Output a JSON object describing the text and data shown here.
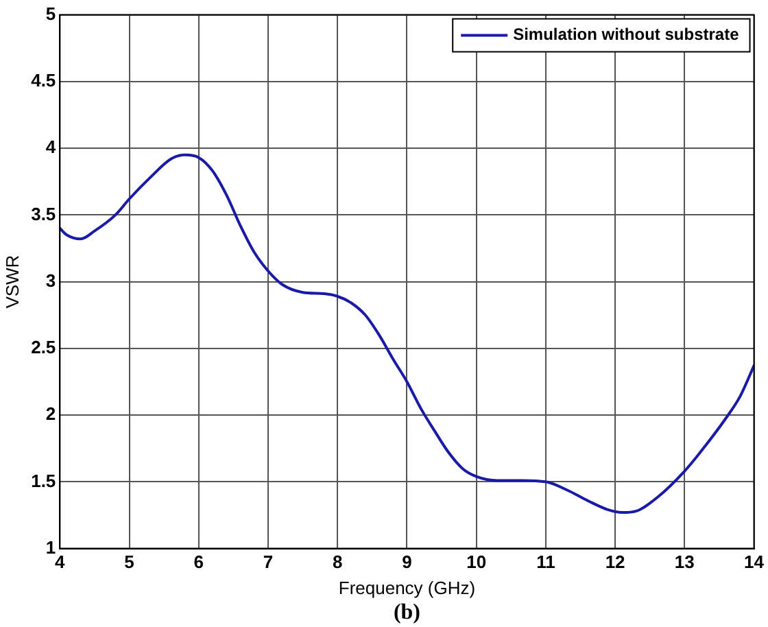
{
  "chart_data": {
    "type": "line",
    "xlabel": "Frequency (GHz)",
    "ylabel": "VSWR",
    "annotations": [
      "(b)"
    ],
    "xlim": [
      4,
      14
    ],
    "xticks": [
      4,
      5,
      6,
      7,
      8,
      9,
      10,
      11,
      12,
      13,
      14
    ],
    "ylim": [
      1,
      5
    ],
    "yticks": [
      1,
      1.5,
      2,
      2.5,
      3,
      3.5,
      4,
      4.5,
      5
    ],
    "grid": true,
    "legend": "top right",
    "marker": "none",
    "line_style": "solid",
    "series": [
      {
        "name": "Simulation without substrate",
        "color": "#1a1aa8",
        "x": [
          4,
          4.1,
          4.3,
          4.5,
          4.8,
          5,
          5.3,
          5.6,
          5.8,
          6,
          6.2,
          6.4,
          6.6,
          6.8,
          7,
          7.2,
          7.5,
          7.8,
          8,
          8.2,
          8.4,
          8.6,
          8.8,
          9,
          9.2,
          9.4,
          9.6,
          9.8,
          10,
          10.3,
          10.6,
          11,
          11.3,
          11.6,
          11.9,
          12.1,
          12.3,
          12.6,
          13,
          13.3,
          13.6,
          13.8,
          14
        ],
        "values": [
          3.4,
          3.35,
          3.32,
          3.38,
          3.5,
          3.62,
          3.78,
          3.92,
          3.95,
          3.93,
          3.83,
          3.65,
          3.42,
          3.22,
          3.08,
          2.98,
          2.92,
          2.91,
          2.89,
          2.84,
          2.75,
          2.6,
          2.42,
          2.25,
          2.05,
          1.88,
          1.72,
          1.6,
          1.54,
          1.51,
          1.51,
          1.5,
          1.44,
          1.36,
          1.29,
          1.27,
          1.28,
          1.38,
          1.58,
          1.77,
          1.98,
          2.14,
          2.37
        ]
      }
    ]
  }
}
